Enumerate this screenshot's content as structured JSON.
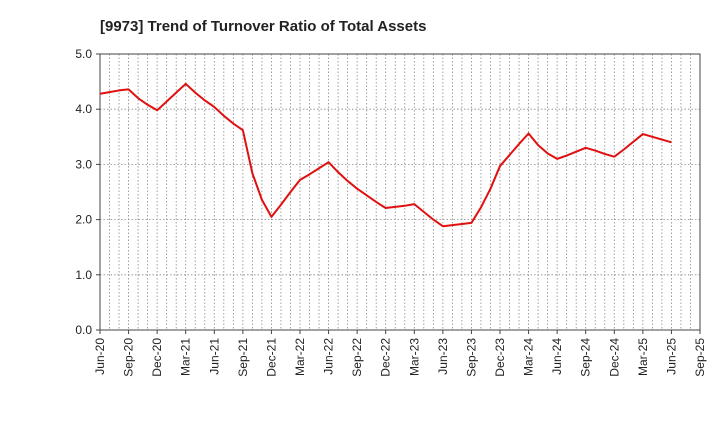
{
  "chart_data": {
    "type": "line",
    "title": "[9973]  Trend of Turnover Ratio of Total Assets",
    "xlabel": "",
    "ylabel": "",
    "ylim": [
      0,
      5
    ],
    "y_ticks": [
      "0.0",
      "1.0",
      "2.0",
      "3.0",
      "4.0",
      "5.0"
    ],
    "x_ticks": [
      "Jun-20",
      "Sep-20",
      "Dec-20",
      "Mar-21",
      "Jun-21",
      "Sep-21",
      "Dec-21",
      "Mar-22",
      "Jun-22",
      "Sep-22",
      "Dec-22",
      "Mar-23",
      "Jun-23",
      "Sep-23",
      "Dec-23",
      "Mar-24",
      "Jun-24",
      "Sep-24",
      "Dec-24",
      "Mar-25",
      "Jun-25",
      "Sep-25"
    ],
    "grid": true,
    "series": [
      {
        "color": "#e01010",
        "x": [
          "Jun-20",
          "Jul-20",
          "Aug-20",
          "Sep-20",
          "Oct-20",
          "Nov-20",
          "Dec-20",
          "Jan-21",
          "Feb-21",
          "Mar-21",
          "Apr-21",
          "May-21",
          "Jun-21",
          "Jul-21",
          "Aug-21",
          "Sep-21",
          "Oct-21",
          "Nov-21",
          "Dec-21",
          "Jan-22",
          "Feb-22",
          "Mar-22",
          "Apr-22",
          "May-22",
          "Jun-22",
          "Jul-22",
          "Aug-22",
          "Sep-22",
          "Oct-22",
          "Nov-22",
          "Dec-22",
          "Jan-23",
          "Feb-23",
          "Mar-23",
          "Apr-23",
          "May-23",
          "Jun-23",
          "Jul-23",
          "Aug-23",
          "Sep-23",
          "Oct-23",
          "Nov-23",
          "Dec-23",
          "Jan-24",
          "Feb-24",
          "Mar-24",
          "Apr-24",
          "May-24",
          "Jun-24",
          "Jul-24",
          "Aug-24",
          "Sep-24",
          "Oct-24",
          "Nov-24",
          "Dec-24",
          "Jan-25",
          "Feb-25",
          "Mar-25",
          "Apr-25",
          "May-25",
          "Jun-25"
        ],
        "values": [
          4.28,
          4.31,
          4.34,
          4.36,
          4.2,
          4.08,
          3.98,
          4.14,
          4.3,
          4.46,
          4.3,
          4.16,
          4.04,
          3.88,
          3.74,
          3.62,
          2.84,
          2.36,
          2.05,
          2.27,
          2.5,
          2.72,
          2.82,
          2.93,
          3.04,
          2.86,
          2.7,
          2.56,
          2.44,
          2.32,
          2.21,
          2.23,
          2.25,
          2.28,
          2.14,
          2.0,
          1.88,
          1.9,
          1.92,
          1.94,
          2.22,
          2.56,
          2.97,
          3.17,
          3.37,
          3.56,
          3.35,
          3.2,
          3.1,
          3.16,
          3.23,
          3.3,
          3.25,
          3.19,
          3.14,
          3.27,
          3.41,
          3.55,
          3.5,
          3.45,
          3.4
        ]
      }
    ]
  }
}
